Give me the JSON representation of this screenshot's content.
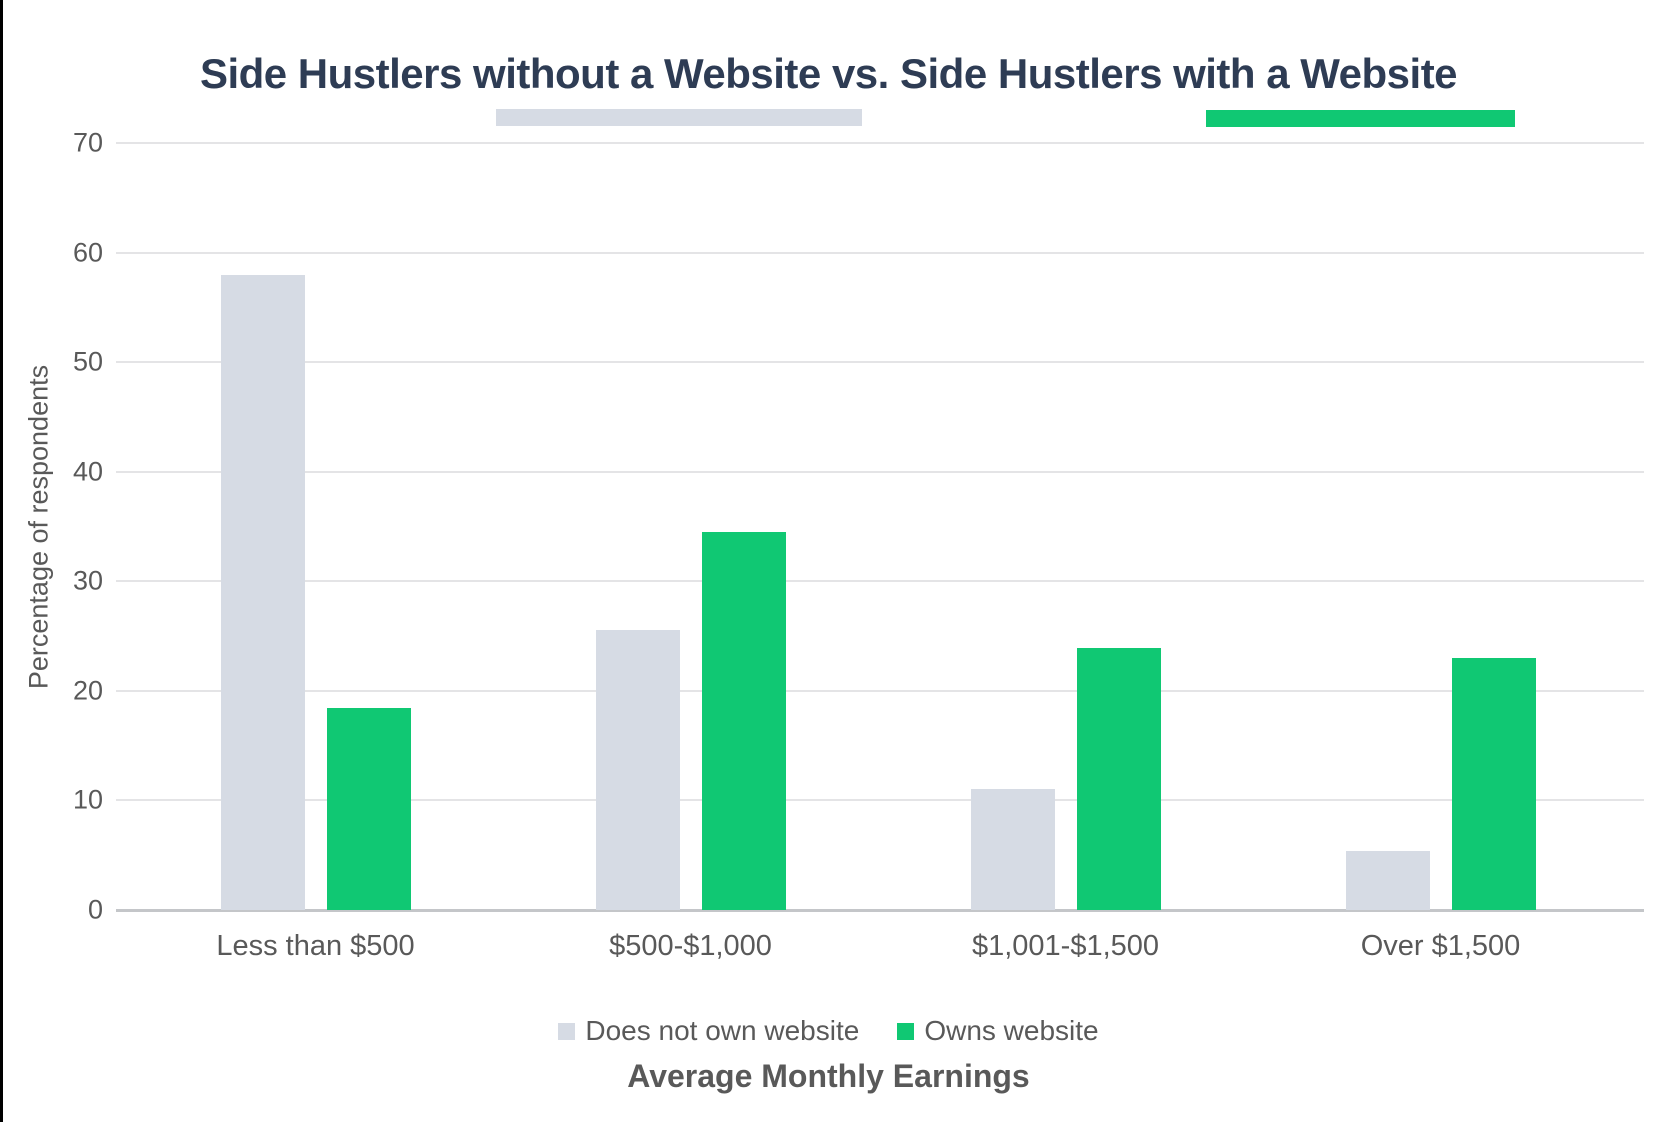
{
  "chart_data": {
    "type": "bar",
    "title": "Side Hustlers without a Website vs. Side Hustlers with a Website",
    "categories": [
      "Less than $500",
      "$500-$1,000",
      "$1,001-$1,500",
      "Over $1,500"
    ],
    "series": [
      {
        "name": "Does not own website",
        "color": "#d6dbe4",
        "values": [
          58,
          25.6,
          11,
          5.4
        ]
      },
      {
        "name": "Owns website",
        "color": "#10c873",
        "values": [
          18.4,
          34.5,
          23.9,
          23
        ]
      }
    ],
    "xlabel": "Average Monthly Earnings",
    "ylabel": "Percentage of respondents",
    "ylim": [
      0,
      70
    ],
    "yticks": [
      0,
      10,
      20,
      30,
      40,
      50,
      60,
      70
    ],
    "grid": "horizontal",
    "legend_position": "bottom"
  },
  "colors": {
    "title": "#2e3c54",
    "axis_text": "#595959",
    "gridline": "#e4e4e6",
    "baseline": "#c4c6c9",
    "title_underline_left": "#d6dbe4",
    "title_underline_right": "#10c873"
  }
}
